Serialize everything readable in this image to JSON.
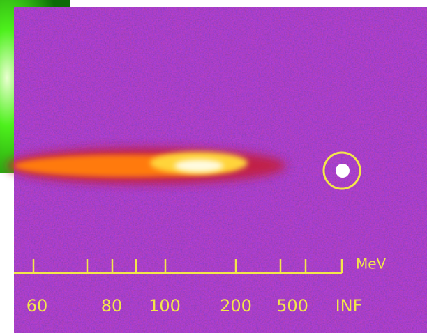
{
  "scale": {
    "unit": "MeV",
    "labels": [
      "60",
      "80",
      "100",
      "200",
      "500",
      "INF"
    ]
  }
}
